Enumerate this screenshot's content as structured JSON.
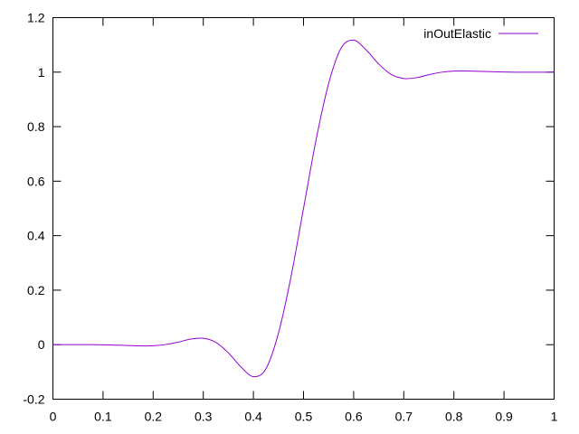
{
  "chart_data": {
    "type": "line",
    "title": "",
    "xlabel": "",
    "ylabel": "",
    "xlim": [
      0,
      1
    ],
    "ylim": [
      -0.2,
      1.2
    ],
    "x_ticks": [
      "0",
      "0.1",
      "0.2",
      "0.3",
      "0.4",
      "0.5",
      "0.6",
      "0.7",
      "0.8",
      "0.9",
      "1"
    ],
    "y_ticks": [
      "-0.2",
      "0",
      "0.2",
      "0.4",
      "0.6",
      "0.8",
      "1",
      "1.2"
    ],
    "grid": false,
    "legend_position": "top-right",
    "series": [
      {
        "name": "inOutElastic",
        "color": "#9400d3",
        "x": [
          0,
          0.025,
          0.05,
          0.075,
          0.1,
          0.125,
          0.15,
          0.175,
          0.2,
          0.225,
          0.25,
          0.275,
          0.3,
          0.325,
          0.35,
          0.375,
          0.4,
          0.425,
          0.45,
          0.475,
          0.5,
          0.525,
          0.55,
          0.575,
          0.6,
          0.625,
          0.65,
          0.675,
          0.7,
          0.725,
          0.75,
          0.775,
          0.8,
          0.825,
          0.85,
          0.875,
          0.9,
          0.925,
          0.95,
          0.975,
          1
        ],
        "y": [
          0,
          0.0002,
          0.0003,
          0.0001,
          -0.0005,
          -0.0016,
          -0.0031,
          -0.0044,
          -0.0039,
          0.0005,
          0.0093,
          0.0205,
          0.0234,
          0.0084,
          -0.0298,
          -0.0815,
          -0.1173,
          -0.0884,
          0.0424,
          0.2487,
          0.5,
          0.7513,
          0.9576,
          1.0884,
          1.1173,
          1.0815,
          1.0298,
          0.9916,
          0.9766,
          0.9795,
          0.9907,
          0.9995,
          1.0039,
          1.0044,
          1.0031,
          1.0016,
          1.0005,
          0.9999,
          0.9997,
          0.9998,
          1
        ]
      }
    ]
  }
}
